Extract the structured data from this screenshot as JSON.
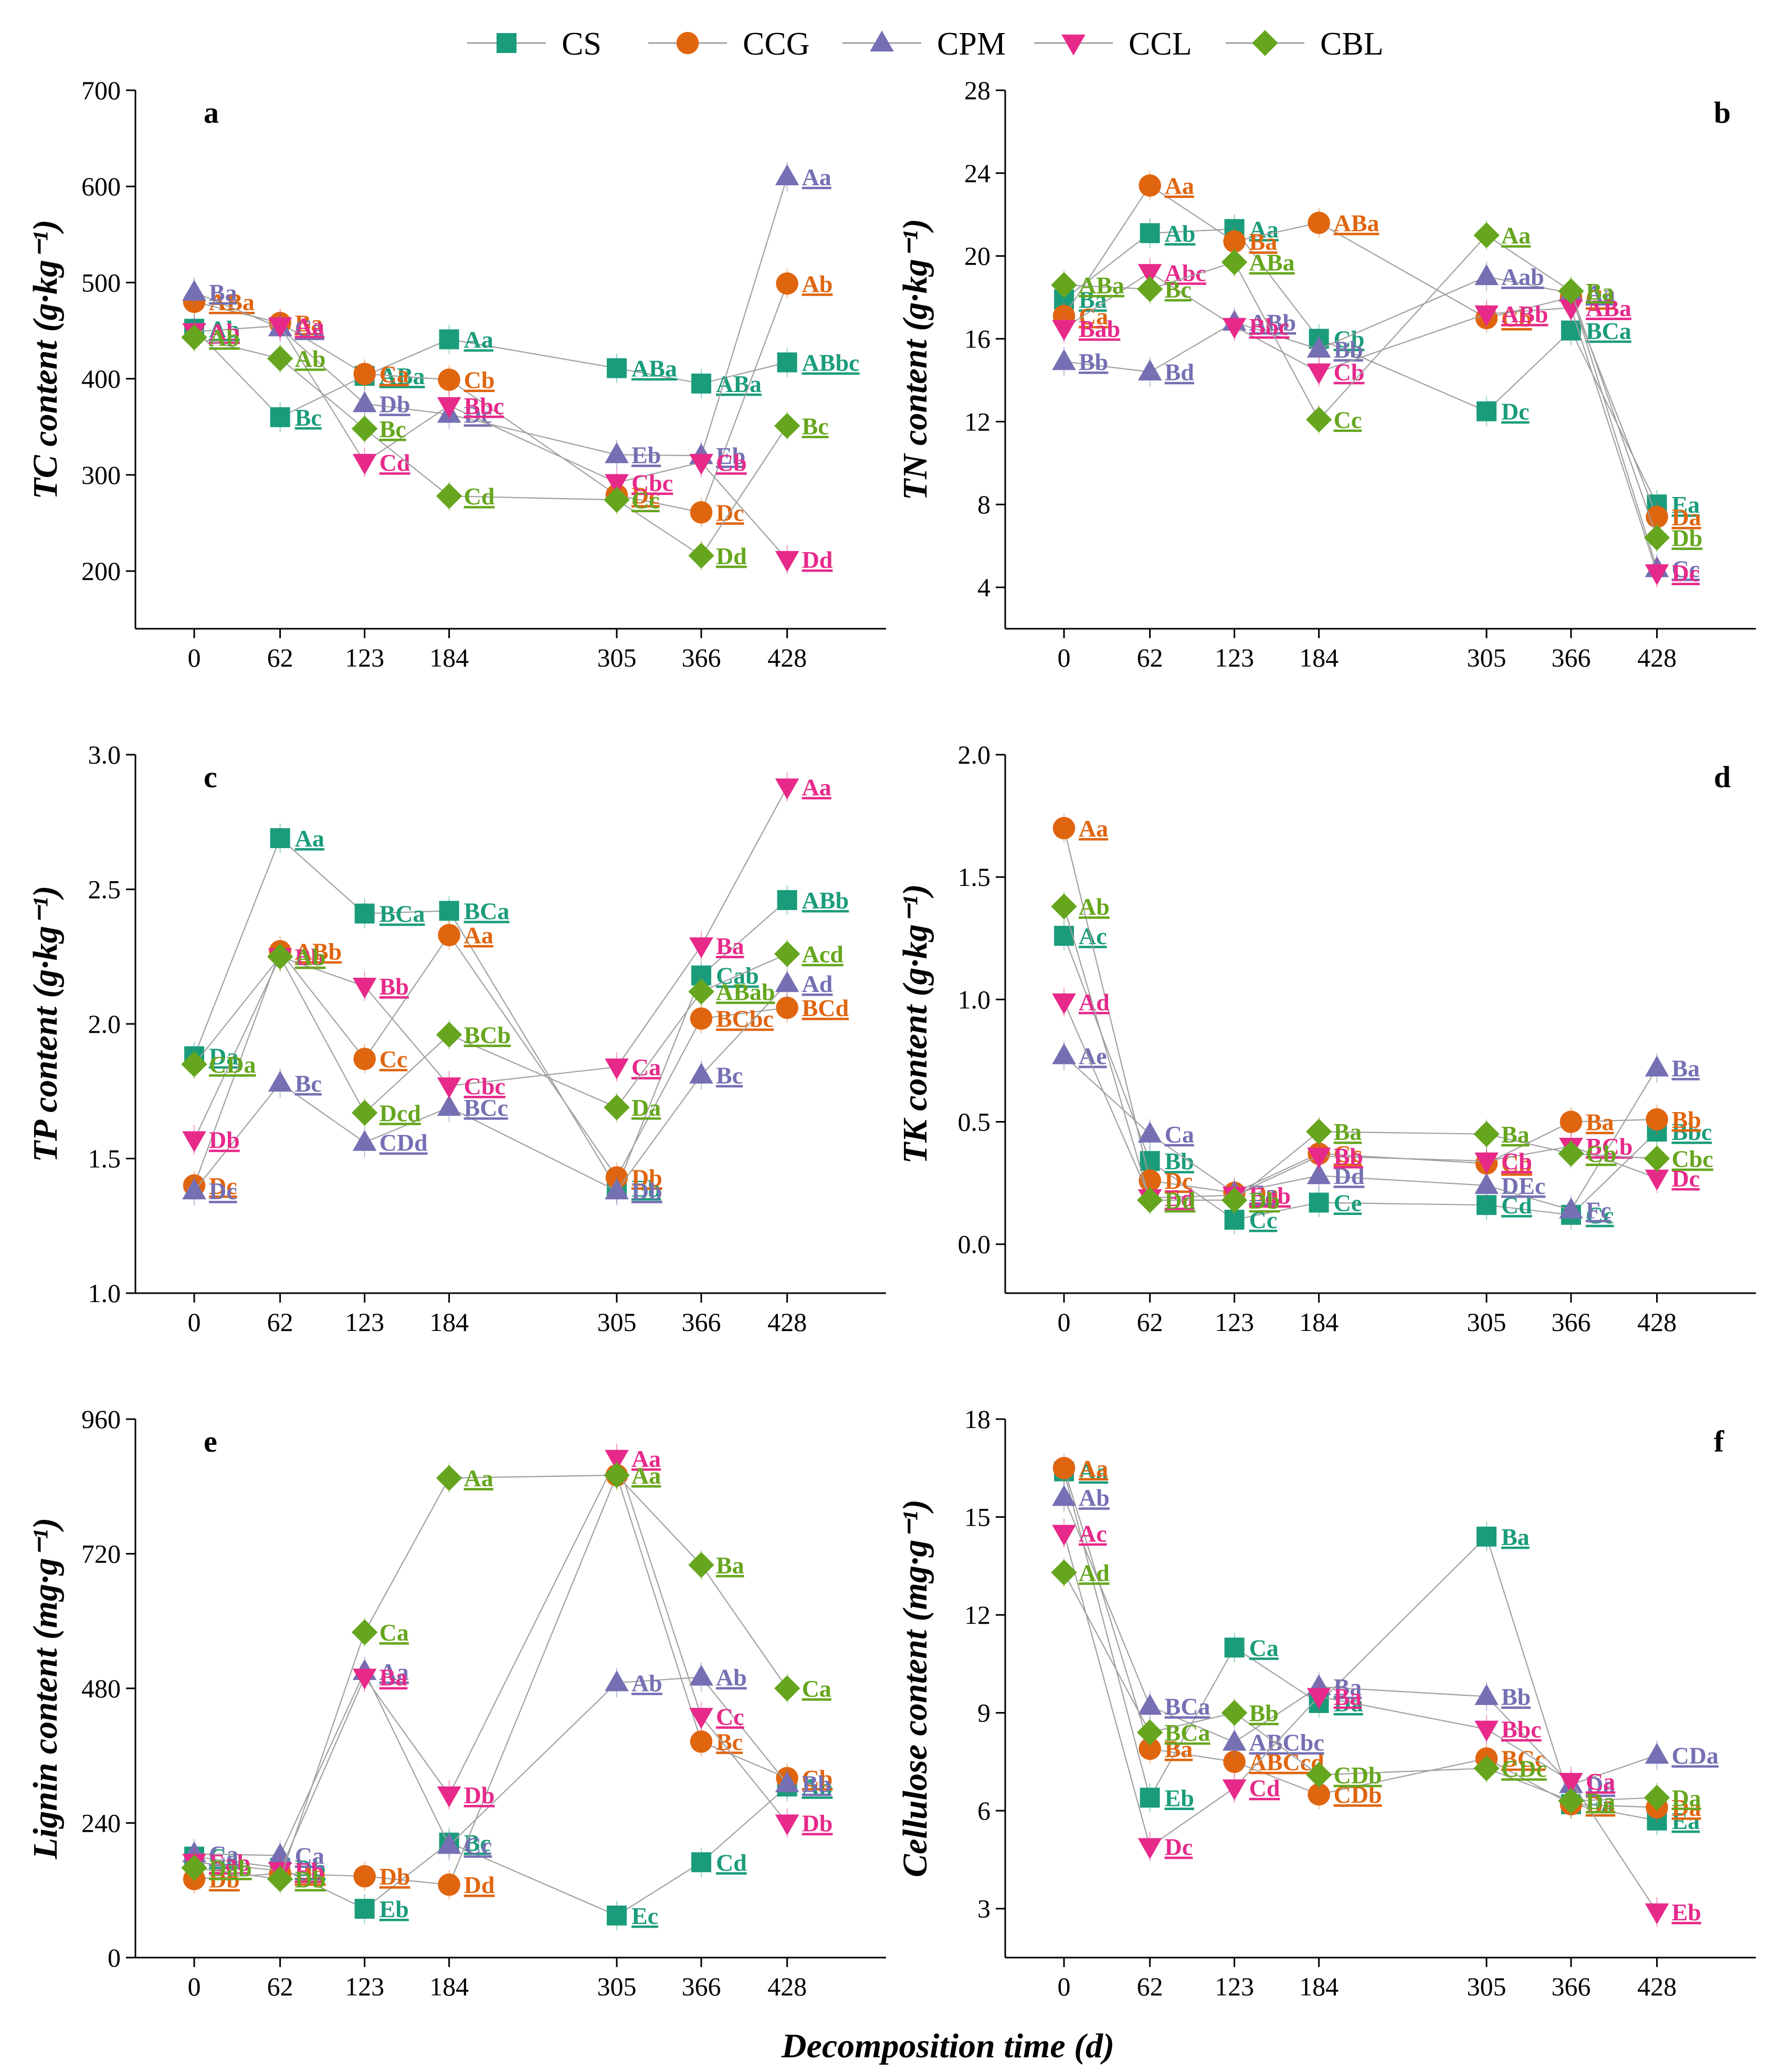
{
  "colors": {
    "CS": "#1a9c7b",
    "CCG": "#e0650f",
    "CPM": "#7570b3",
    "CCL": "#e7298a",
    "CBL": "#66a61e",
    "line": "#a0a0a0"
  },
  "legend": [
    "CS",
    "CCG",
    "CPM",
    "CCL",
    "CBL"
  ],
  "xlabel": "Decomposition time (d)",
  "chart_data": [
    {
      "type": "line",
      "panel": "a",
      "ylabel": "TC content (g·kg⁻¹)",
      "x": [
        0,
        62,
        123,
        184,
        305,
        366,
        428
      ],
      "ylim": [
        140,
        700
      ],
      "yticks": [
        200,
        300,
        400,
        500,
        600,
        700
      ],
      "ytick_labels": [
        "200",
        "300",
        "400",
        "500",
        "600",
        "700"
      ],
      "series": [
        {
          "name": "CS",
          "values": [
            452,
            360,
            403,
            441,
            411,
            395,
            417
          ],
          "labels": [
            "Ab",
            "Bc",
            "ABa",
            "Aa",
            "ABa",
            "ABa",
            "ABbc"
          ]
        },
        {
          "name": "CCG",
          "values": [
            480,
            458,
            405,
            399,
            279,
            261,
            499
          ],
          "labels": [
            "ABa",
            "Ba",
            "Ca",
            "Cb",
            "Dc",
            "Dc",
            "Ab"
          ]
        },
        {
          "name": "CPM",
          "values": [
            490,
            453,
            374,
            363,
            321,
            320,
            610
          ],
          "labels": [
            "Ba",
            "Ca",
            "Db",
            "Dc",
            "Eb",
            "Eb",
            "Aa"
          ]
        },
        {
          "name": "CCL",
          "values": [
            449,
            455,
            313,
            372,
            292,
            313,
            212
          ],
          "labels": [
            "Ab",
            "Aa",
            "Cd",
            "Bbc",
            "Cbc",
            "Cb",
            "Dd"
          ]
        },
        {
          "name": "CBL",
          "values": [
            443,
            421,
            348,
            278,
            274,
            216,
            351
          ],
          "labels": [
            "Ab",
            "Ab",
            "Bc",
            "Cd",
            "Cc",
            "Dd",
            "Bc"
          ]
        }
      ]
    },
    {
      "type": "line",
      "panel": "b",
      "ylabel": "TN content (g·kg⁻¹)",
      "x": [
        0,
        62,
        123,
        184,
        305,
        366,
        428
      ],
      "ylim": [
        2,
        28
      ],
      "yticks": [
        4,
        8,
        12,
        16,
        20,
        24,
        28
      ],
      "ytick_labels": [
        "4",
        "8",
        "12",
        "16",
        "20",
        "24",
        "28"
      ],
      "series": [
        {
          "name": "CS",
          "values": [
            17.9,
            21.1,
            21.3,
            16.0,
            12.5,
            16.4,
            8.0
          ],
          "labels": [
            "Ba",
            "Ab",
            "Aa",
            "Cb",
            "Dc",
            "BCa",
            "Ea"
          ]
        },
        {
          "name": "CCG",
          "values": [
            17.1,
            23.4,
            20.7,
            21.6,
            17.0,
            18.0,
            7.4
          ],
          "labels": [
            "Ca",
            "Aa",
            "Ba",
            "ABa",
            "Cb",
            "Ca",
            "Da"
          ]
        },
        {
          "name": "CPM",
          "values": [
            14.9,
            14.4,
            16.8,
            15.5,
            19.0,
            18.2,
            4.9
          ],
          "labels": [
            "Bb",
            "Bd",
            "ABb",
            "Bb",
            "Aab",
            "Aa",
            "Cc"
          ]
        },
        {
          "name": "CCL",
          "values": [
            16.5,
            19.2,
            16.6,
            14.4,
            17.2,
            17.5,
            4.7
          ],
          "labels": [
            "Bab",
            "Abc",
            "Bbc",
            "Cb",
            "ABb",
            "ABa",
            "Dc"
          ]
        },
        {
          "name": "CBL",
          "values": [
            18.6,
            18.4,
            19.7,
            12.1,
            21.0,
            18.3,
            6.4
          ],
          "labels": [
            "ABa",
            "Bc",
            "ABa",
            "Cc",
            "Aa",
            "Ba",
            "Db"
          ]
        }
      ]
    },
    {
      "type": "line",
      "panel": "c",
      "ylabel": "TP content (g·kg⁻¹)",
      "x": [
        0,
        62,
        123,
        184,
        305,
        366,
        428
      ],
      "ylim": [
        1.0,
        3.0
      ],
      "yticks": [
        1.0,
        1.5,
        2.0,
        2.5,
        3.0
      ],
      "ytick_labels": [
        "1.0",
        "1.5",
        "2.0",
        "2.5",
        "3.0"
      ],
      "series": [
        {
          "name": "CS",
          "values": [
            1.88,
            2.69,
            2.41,
            2.42,
            1.39,
            2.18,
            2.46
          ],
          "labels": [
            "Da",
            "Aa",
            "BCa",
            "BCa",
            "Eb",
            "Cab",
            "ABb"
          ]
        },
        {
          "name": "CCG",
          "values": [
            1.4,
            2.27,
            1.87,
            2.33,
            1.43,
            2.02,
            2.06
          ],
          "labels": [
            "Dc",
            "ABb",
            "Cc",
            "Aa",
            "Db",
            "BCbc",
            "BCd"
          ]
        },
        {
          "name": "CPM",
          "values": [
            1.38,
            1.78,
            1.56,
            1.69,
            1.38,
            1.81,
            2.15
          ],
          "labels": [
            "Dc",
            "Bc",
            "CDd",
            "BCc",
            "Db",
            "Bc",
            "Ad"
          ]
        },
        {
          "name": "CCL",
          "values": [
            1.57,
            2.25,
            2.14,
            1.77,
            1.84,
            2.29,
            2.88
          ],
          "labels": [
            "Db",
            "Bb",
            "Bb",
            "Cbc",
            "Ca",
            "Ba",
            "Aa"
          ]
        },
        {
          "name": "CBL",
          "values": [
            1.85,
            2.25,
            1.67,
            1.96,
            1.69,
            2.12,
            2.26
          ],
          "labels": [
            "CDa",
            "Ab",
            "Dcd",
            "BCb",
            "Da",
            "ABab",
            "Acd"
          ]
        }
      ]
    },
    {
      "type": "line",
      "panel": "d",
      "ylabel": "TK content (g·kg⁻¹)",
      "x": [
        0,
        62,
        123,
        184,
        305,
        366,
        428
      ],
      "ylim": [
        -0.2,
        2.0
      ],
      "yticks": [
        0.0,
        0.5,
        1.0,
        1.5,
        2.0
      ],
      "ytick_labels": [
        "0.0",
        "0.5",
        "1.0",
        "1.5",
        "2.0"
      ],
      "series": [
        {
          "name": "CS",
          "values": [
            1.26,
            0.34,
            0.1,
            0.17,
            0.16,
            0.12,
            0.46
          ],
          "labels": [
            "Ac",
            "Bb",
            "Cc",
            "Ce",
            "Cd",
            "Cc",
            "Bbc"
          ]
        },
        {
          "name": "CCG",
          "values": [
            1.7,
            0.26,
            0.21,
            0.37,
            0.33,
            0.5,
            0.51
          ],
          "labels": [
            "Aa",
            "Dc",
            "Da",
            "Cc",
            "Cb",
            "Ba",
            "Bb"
          ]
        },
        {
          "name": "CPM",
          "values": [
            0.77,
            0.45,
            0.21,
            0.28,
            0.24,
            0.14,
            0.72
          ],
          "labels": [
            "Ae",
            "Ca",
            "Ea",
            "Dd",
            "DEc",
            "Fc",
            "Ba"
          ]
        },
        {
          "name": "CCL",
          "values": [
            0.99,
            0.19,
            0.2,
            0.36,
            0.34,
            0.4,
            0.27
          ],
          "labels": [
            "Ad",
            "Ed",
            "Eab",
            "Bb",
            "Cb",
            "BCb",
            "Dc"
          ]
        },
        {
          "name": "CBL",
          "values": [
            1.38,
            0.18,
            0.18,
            0.46,
            0.45,
            0.37,
            0.35
          ],
          "labels": [
            "Ab",
            "Dd",
            "Db",
            "Ba",
            "Ba",
            "Cb",
            "Cbc"
          ]
        }
      ]
    },
    {
      "type": "line",
      "panel": "e",
      "ylabel": "Lignin content (mg·g⁻¹)",
      "x": [
        0,
        62,
        123,
        184,
        305,
        366,
        428
      ],
      "ylim": [
        0,
        960
      ],
      "yticks": [
        0,
        240,
        480,
        720,
        960
      ],
      "ytick_labels": [
        "0",
        "240",
        "480",
        "720",
        "960"
      ],
      "series": [
        {
          "name": "CS",
          "values": [
            180,
            160,
            87,
            205,
            75,
            170,
            305
          ],
          "labels": [
            "Ca",
            "Db",
            "Eb",
            "Bc",
            "Ec",
            "Cd",
            "Ab"
          ]
        },
        {
          "name": "CCG",
          "values": [
            140,
            150,
            145,
            130,
            860,
            385,
            320
          ],
          "labels": [
            "Db",
            "Db",
            "Db",
            "Dd",
            "Aa",
            "Bc",
            "Cb"
          ]
        },
        {
          "name": "CPM",
          "values": [
            185,
            182,
            510,
            200,
            490,
            500,
            310
          ],
          "labels": [
            "Ca",
            "Ca",
            "Aa",
            "Cc",
            "Ab",
            "Ab",
            "Bb"
          ]
        },
        {
          "name": "CCL",
          "values": [
            170,
            155,
            500,
            290,
            890,
            430,
            240
          ],
          "labels": [
            "Eab",
            "Eb",
            "Ba",
            "Db",
            "Aa",
            "Cc",
            "Db"
          ]
        },
        {
          "name": "CBL",
          "values": [
            160,
            140,
            580,
            855,
            860,
            700,
            480
          ],
          "labels": [
            "Dab",
            "Db",
            "Ca",
            "Aa",
            "Aa",
            "Ba",
            "Ca"
          ]
        }
      ]
    },
    {
      "type": "line",
      "panel": "f",
      "ylabel": "Cellulose content (mg·g⁻¹)",
      "x": [
        0,
        62,
        123,
        184,
        305,
        366,
        428
      ],
      "ylim": [
        1.5,
        18
      ],
      "yticks": [
        3,
        6,
        9,
        12,
        15,
        18
      ],
      "ytick_labels": [
        "3",
        "6",
        "9",
        "12",
        "15",
        "18"
      ],
      "series": [
        {
          "name": "CS",
          "values": [
            16.4,
            6.4,
            11.0,
            9.3,
            14.4,
            6.2,
            5.7
          ],
          "labels": [
            "Aa",
            "Eb",
            "Ca",
            "Da",
            "Ba",
            "Ea",
            "Ea"
          ]
        },
        {
          "name": "CCG",
          "values": [
            16.5,
            7.9,
            7.5,
            6.5,
            7.6,
            6.2,
            6.1
          ],
          "labels": [
            "Aa",
            "Ba",
            "ABCcd",
            "CDb",
            "BCc",
            "Da",
            "Da"
          ]
        },
        {
          "name": "CPM",
          "values": [
            15.6,
            9.2,
            8.1,
            9.8,
            9.5,
            6.8,
            7.7
          ],
          "labels": [
            "Ab",
            "BCa",
            "ABCbc",
            "Ba",
            "Bb",
            "Da",
            "CDa"
          ]
        },
        {
          "name": "CCL",
          "values": [
            14.5,
            4.9,
            6.7,
            9.5,
            8.5,
            6.9,
            2.9
          ],
          "labels": [
            "Ac",
            "Dc",
            "Cd",
            "Ba",
            "Bbc",
            "Ca",
            "Eb"
          ]
        },
        {
          "name": "CBL",
          "values": [
            13.3,
            8.4,
            9.0,
            7.1,
            7.3,
            6.3,
            6.4
          ],
          "labels": [
            "Ad",
            "BCa",
            "Bb",
            "CDb",
            "CDc",
            "Da",
            "Da"
          ]
        }
      ]
    }
  ]
}
